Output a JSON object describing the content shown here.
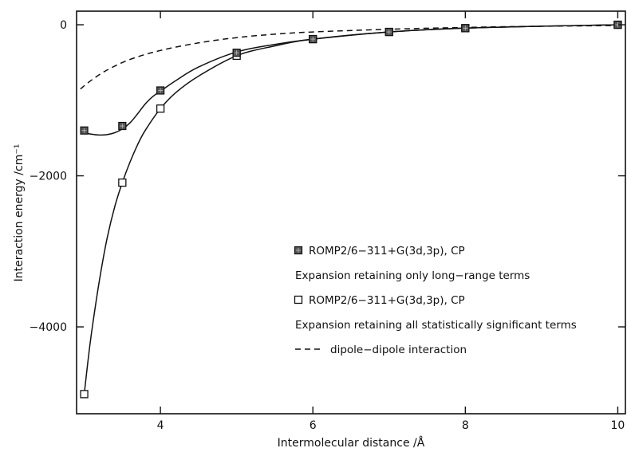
{
  "chart_data": {
    "type": "line",
    "title": "",
    "xlabel": "Intermolecular distance /Å",
    "ylabel": "Interaction energy /cm⁻¹",
    "xlim": [
      2.9,
      10.1
    ],
    "ylim": [
      -5150,
      180
    ],
    "x_ticks": [
      4,
      6,
      8,
      10
    ],
    "y_ticks": [
      0,
      -2000,
      -4000
    ],
    "grid": false,
    "legend_position": "center-right",
    "series": [
      {
        "name": "ROMP2/6−311+G(3d,3p), CP",
        "marker": "filled-square",
        "x": [
          3.0,
          3.5,
          4.0,
          5.0,
          6.0,
          7.0,
          8.0,
          10.0
        ],
        "y": [
          -1400,
          -1340,
          -870,
          -370,
          -190,
          -95,
          -45,
          0
        ]
      },
      {
        "name": "ROMP2/6−311+G(3d,3p), CP",
        "marker": "open-square",
        "x": [
          3.0,
          3.5,
          4.0,
          5.0,
          6.0,
          7.0,
          8.0,
          10.0
        ],
        "y": [
          -4890,
          -2090,
          -1110,
          -410,
          -190,
          -95,
          -45,
          0
        ]
      }
    ],
    "curves": [
      {
        "name": "Expansion retaining only long−range terms",
        "style": "solid",
        "x": [
          3.0,
          3.1,
          3.2,
          3.3,
          3.4,
          3.5,
          3.6,
          3.7,
          3.8,
          3.9,
          4.0,
          4.2,
          4.5,
          5.0,
          5.5,
          6.0,
          7.0,
          8.0,
          9.0,
          10.0
        ],
        "y": [
          -1430,
          -1450,
          -1460,
          -1455,
          -1430,
          -1380,
          -1300,
          -1180,
          -1050,
          -950,
          -880,
          -740,
          -560,
          -360,
          -260,
          -190,
          -95,
          -45,
          -20,
          0
        ]
      },
      {
        "name": "Expansion retaining all statistically significant terms",
        "style": "solid",
        "x": [
          3.0,
          3.05,
          3.1,
          3.2,
          3.3,
          3.4,
          3.5,
          3.6,
          3.7,
          3.8,
          4.0,
          4.2,
          4.5,
          5.0,
          5.5,
          6.0,
          7.0,
          8.0,
          9.0,
          10.0
        ],
        "y": [
          -4890,
          -4450,
          -4050,
          -3380,
          -2830,
          -2410,
          -2090,
          -1820,
          -1590,
          -1400,
          -1110,
          -900,
          -680,
          -410,
          -280,
          -190,
          -95,
          -45,
          -20,
          0
        ]
      },
      {
        "name": "dipole−dipole interaction",
        "style": "dashed",
        "x": [
          2.95,
          3.1,
          3.3,
          3.6,
          4.0,
          4.5,
          5.0,
          5.5,
          6.0,
          7.0,
          8.0,
          9.0,
          10.0
        ],
        "y": [
          -850,
          -730,
          -600,
          -460,
          -340,
          -240,
          -170,
          -125,
          -95,
          -60,
          -35,
          -20,
          -10
        ]
      }
    ],
    "legend": [
      {
        "symbol": "filled-square",
        "text": "ROMP2/6−311+G(3d,3p), CP"
      },
      {
        "symbol": "none",
        "text": "Expansion retaining only long−range terms"
      },
      {
        "symbol": "open-square",
        "text": "ROMP2/6−311+G(3d,3p), CP"
      },
      {
        "symbol": "none",
        "text": "Expansion retaining all statistically significant terms"
      },
      {
        "symbol": "dash",
        "text": "dipole−dipole interaction"
      }
    ]
  }
}
